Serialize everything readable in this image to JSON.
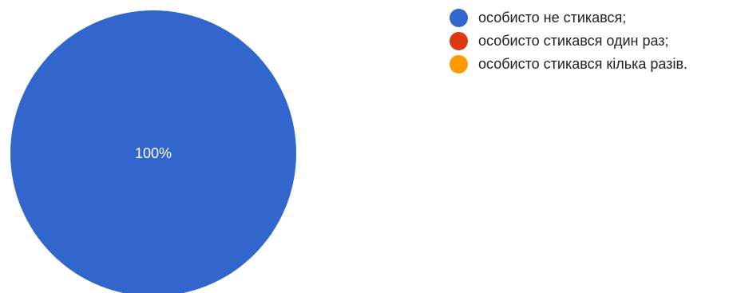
{
  "chart_data": {
    "type": "pie",
    "slices": [
      {
        "name": "особисто не стикався;",
        "value": 100,
        "label": "100%",
        "color": "#3366cc"
      },
      {
        "name": "особисто стикався один раз;",
        "value": 0,
        "label": "",
        "color": "#dc3912"
      },
      {
        "name": "особисто стикався кілька разів.",
        "value": 0,
        "label": "",
        "color": "#ff9900"
      }
    ],
    "legend_position": "right"
  }
}
